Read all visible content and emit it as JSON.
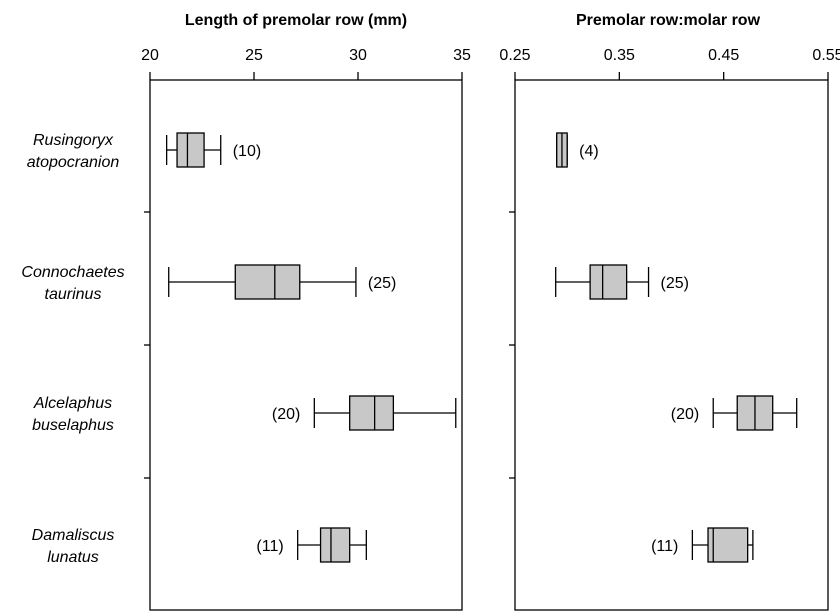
{
  "chart_data": [
    {
      "type": "box",
      "title": "Length of premolar row (mm)",
      "xlim": [
        20,
        35
      ],
      "ticks": [
        "20",
        "25",
        "30",
        "35"
      ],
      "tick_values": [
        20,
        25,
        30,
        35
      ],
      "categories": [
        {
          "line1": "Rusingoryx",
          "line2": "atopocranion"
        },
        {
          "line1": "Connochaetes",
          "line2": "taurinus"
        },
        {
          "line1": "Alcelaphus",
          "line2": "buselaphus"
        },
        {
          "line1": "Damaliscus",
          "line2": "lunatus"
        }
      ],
      "boxes": [
        {
          "min": 20.8,
          "q1": 21.3,
          "median": 21.8,
          "q3": 22.6,
          "max": 23.4,
          "n_label": "(10)",
          "label_side": "right"
        },
        {
          "min": 20.9,
          "q1": 24.1,
          "median": 26.0,
          "q3": 27.2,
          "max": 29.9,
          "n_label": "(25)",
          "label_side": "right"
        },
        {
          "min": 27.9,
          "q1": 29.6,
          "median": 30.8,
          "q3": 31.7,
          "max": 34.7,
          "n_label": "(20)",
          "label_side": "left"
        },
        {
          "min": 27.1,
          "q1": 28.2,
          "median": 28.7,
          "q3": 29.6,
          "max": 30.4,
          "n_label": "(11)",
          "label_side": "left"
        }
      ],
      "box_color": "#c8c8c8"
    },
    {
      "type": "box",
      "title": "Premolar row:molar row",
      "xlim": [
        0.25,
        0.55
      ],
      "ticks": [
        "0.25",
        "0.35",
        "0.45",
        "0.55"
      ],
      "tick_values": [
        0.25,
        0.35,
        0.45,
        0.55
      ],
      "boxes": [
        {
          "min": 0.29,
          "q1": 0.29,
          "median": 0.295,
          "q3": 0.3,
          "max": 0.3,
          "n_label": "(4)",
          "label_side": "right"
        },
        {
          "min": 0.289,
          "q1": 0.322,
          "median": 0.334,
          "q3": 0.357,
          "max": 0.378,
          "n_label": "(25)",
          "label_side": "right"
        },
        {
          "min": 0.44,
          "q1": 0.463,
          "median": 0.48,
          "q3": 0.497,
          "max": 0.52,
          "n_label": "(20)",
          "label_side": "left"
        },
        {
          "min": 0.42,
          "q1": 0.435,
          "median": 0.44,
          "q3": 0.473,
          "max": 0.478,
          "n_label": "(11)",
          "label_side": "left"
        }
      ],
      "box_color": "#c8c8c8"
    }
  ]
}
